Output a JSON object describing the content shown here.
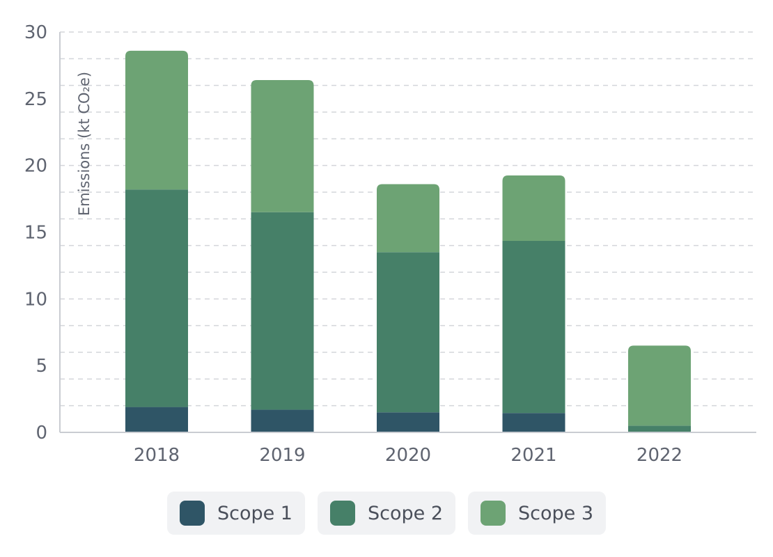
{
  "chart_data": {
    "type": "bar",
    "stacked": true,
    "categories": [
      "2018",
      "2019",
      "2020",
      "2021",
      "2022"
    ],
    "series": [
      {
        "name": "Scope 1",
        "color": "#2f5566",
        "values": [
          1.9,
          1.7,
          1.5,
          1.45,
          0
        ]
      },
      {
        "name": "Scope 2",
        "color": "#468068",
        "values": [
          16.3,
          14.8,
          12.0,
          12.9,
          0.5
        ]
      },
      {
        "name": "Scope 3",
        "color": "#6da374",
        "values": [
          10.4,
          9.9,
          5.1,
          4.9,
          6.0
        ]
      }
    ],
    "ylabel": "Emissions (kt CO₂e)",
    "xlabel": "",
    "title": "",
    "ylim": [
      0,
      30
    ],
    "yticks": [
      "0",
      "5",
      "10",
      "15",
      "20",
      "25",
      "30"
    ],
    "grid": true,
    "legend_position": "bottom"
  }
}
